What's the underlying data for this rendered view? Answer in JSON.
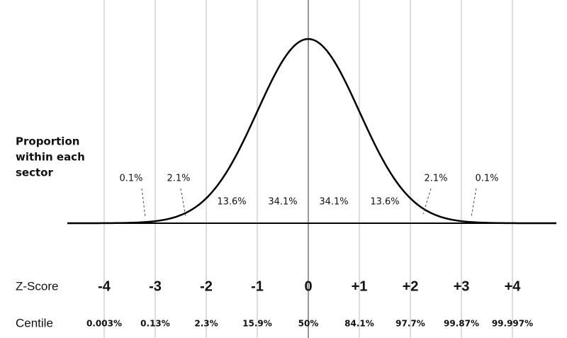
{
  "proportion_label": [
    "Proportion",
    "within each",
    "sector"
  ],
  "sectors": [
    "0.1%",
    "2.1%",
    "13.6%",
    "34.1%",
    "34.1%",
    "13.6%",
    "2.1%",
    "0.1%"
  ],
  "z_score_label": "Z-Score",
  "z_scores": [
    "-4",
    "-3",
    "-2",
    "-1",
    "0",
    "+1",
    "+2",
    "+3",
    "+4"
  ],
  "centile_label": "Centile",
  "centiles": [
    "0.003%",
    "0.13%",
    "2.3%",
    "15.9%",
    "50%",
    "84.1%",
    "97.7%",
    "99.87%",
    "99.997%"
  ]
}
